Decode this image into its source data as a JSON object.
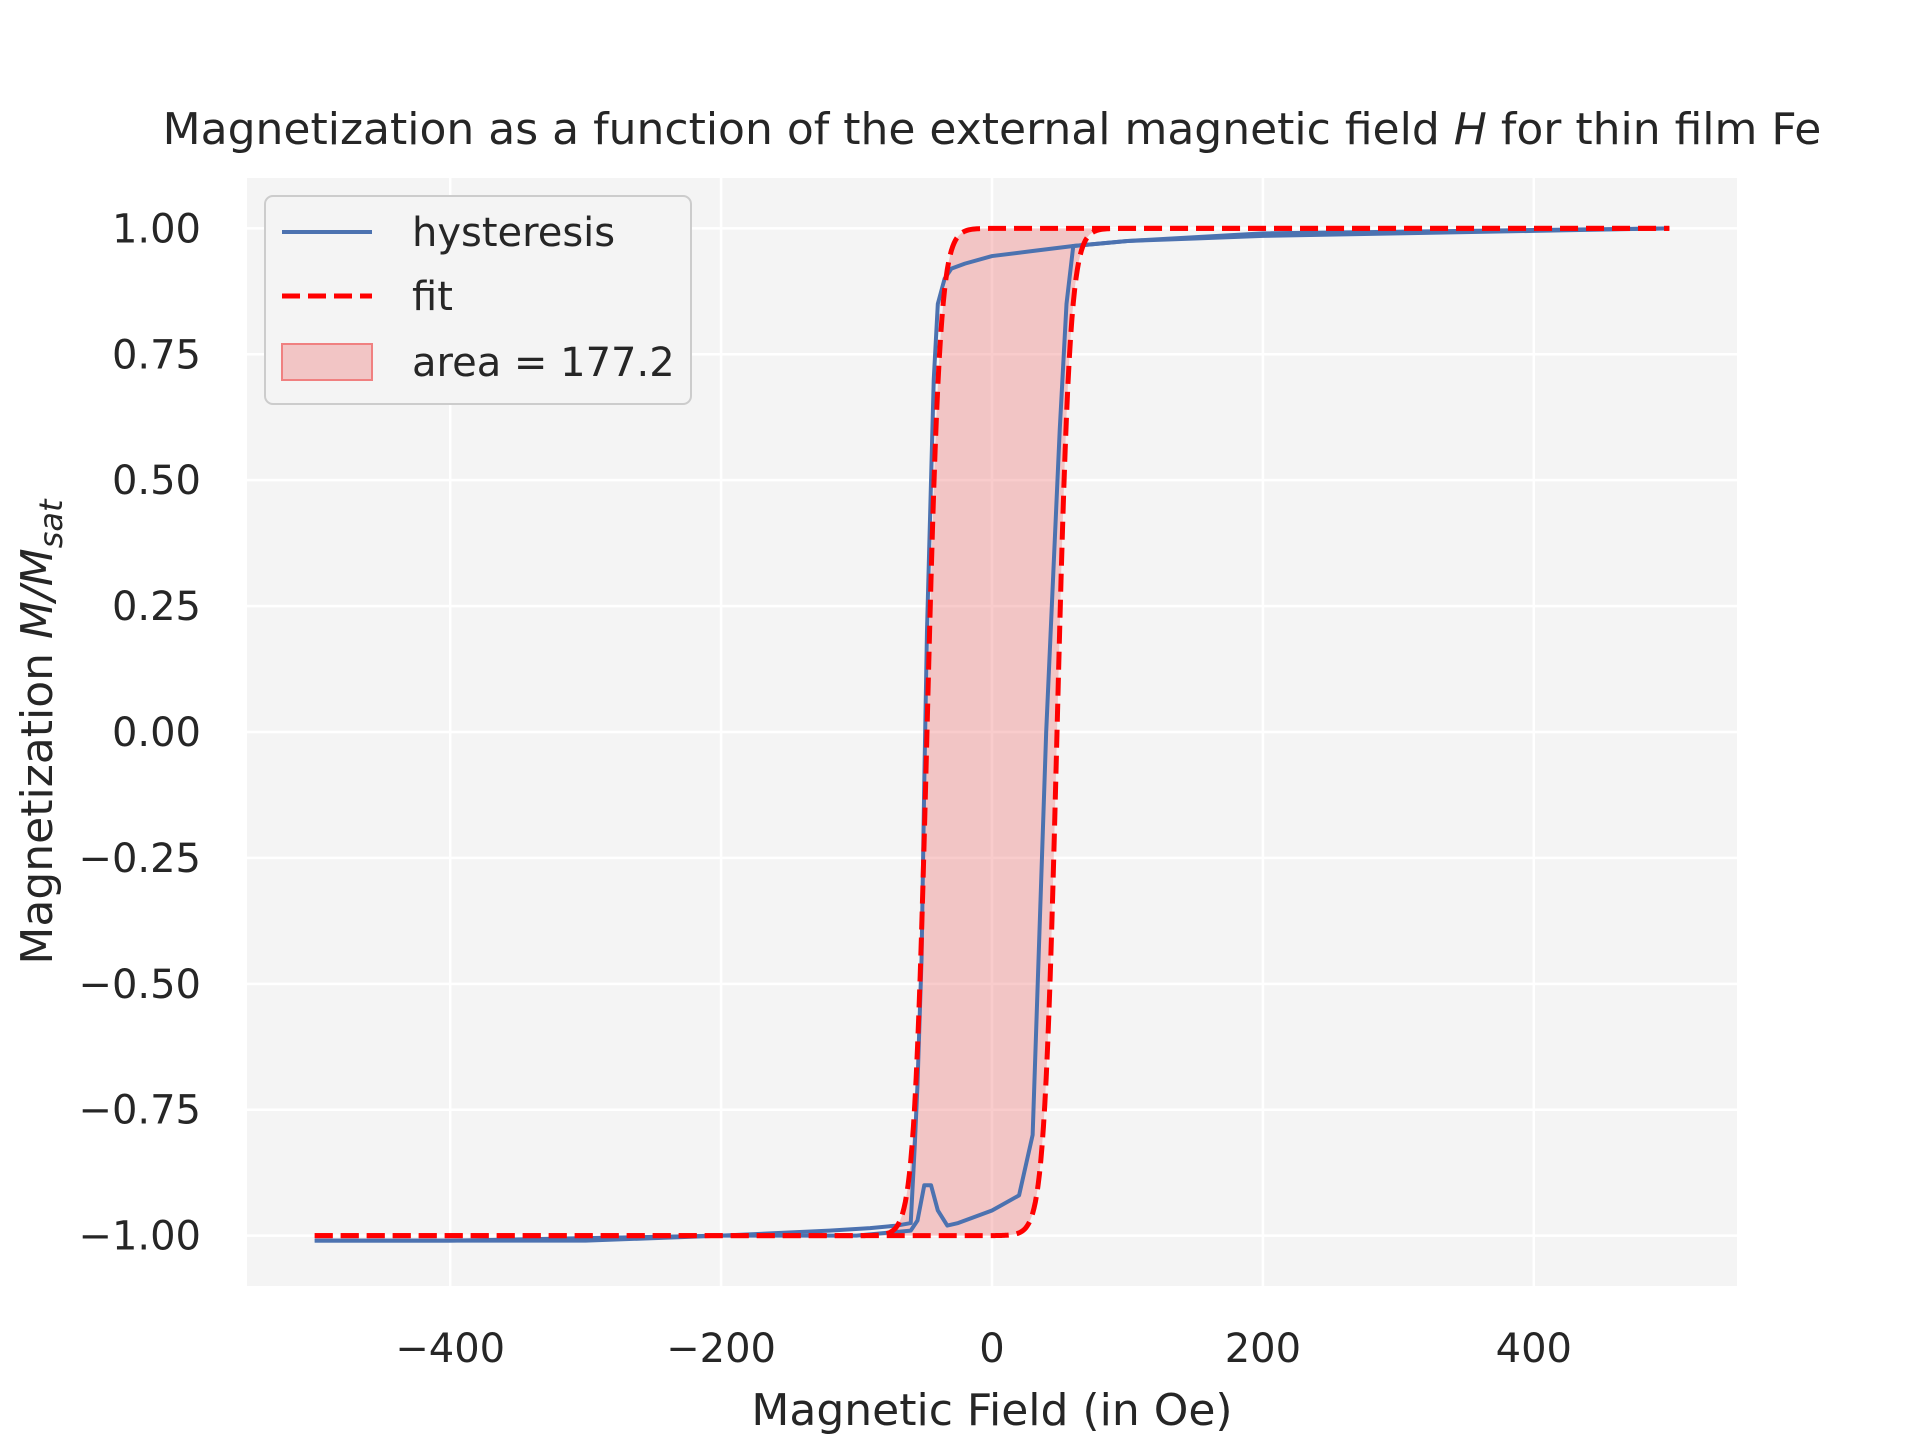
{
  "chart_data": {
    "type": "line",
    "title": "Magnetization as a function of the external magnetic field ",
    "title_italic": "H",
    "title_end": " for thin film Fe",
    "xlabel": "Magnetic Field (in Oe)",
    "ylabel_main": "Magnetization ",
    "ylabel_math": "M/M",
    "ylabel_sub": "sat",
    "xlim": [
      -550,
      550
    ],
    "ylim": [
      -1.1,
      1.1
    ],
    "xticks": [
      -400,
      -200,
      0,
      200,
      400
    ],
    "xtick_labels": [
      "−400",
      "−200",
      "0",
      "200",
      "400"
    ],
    "yticks": [
      1.0,
      0.75,
      0.5,
      0.25,
      0.0,
      -0.25,
      -0.5,
      -0.75,
      -1.0
    ],
    "ytick_labels": [
      "1.00",
      "0.75",
      "0.50",
      "0.25",
      "0.00",
      "−0.25",
      "−0.50",
      "−0.75",
      "−1.00"
    ],
    "grid": true,
    "legend": "top-left",
    "colors": {
      "background": "#f4f4f4",
      "grid": "#ffffff",
      "hysteresis": "#4c72b0",
      "fit": "#ff0000",
      "fill": "#f08080"
    },
    "series": [
      {
        "name": "hysteresis",
        "style": "solid",
        "descending": {
          "x": [
            500,
            200,
            100,
            60,
            55,
            50,
            45,
            40,
            35,
            30,
            20,
            0,
            -10,
            -25,
            -33,
            -40,
            -45,
            -50,
            -55,
            -60,
            -100,
            -200,
            -300,
            -400,
            -450,
            -500
          ],
          "y": [
            1.0,
            0.99,
            0.975,
            0.965,
            0.85,
            0.6,
            0.3,
            0.0,
            -0.4,
            -0.8,
            -0.92,
            -0.95,
            -0.96,
            -0.975,
            -0.98,
            -0.95,
            -0.9,
            -0.9,
            -0.97,
            -0.99,
            -1.0,
            -1.0,
            -1.01,
            -1.01,
            -1.01,
            -1.01
          ]
        },
        "ascending": {
          "x": [
            -500,
            -400,
            -300,
            -200,
            -120,
            -90,
            -70,
            -60,
            -57,
            -55,
            -52,
            -50,
            -48,
            -45,
            -43,
            -40,
            -35,
            -30,
            -20,
            0,
            30,
            60,
            100,
            150,
            200,
            300,
            400,
            500
          ],
          "y": [
            -1.01,
            -1.01,
            -1.005,
            -1.0,
            -0.99,
            -0.985,
            -0.98,
            -0.975,
            -0.82,
            -0.7,
            -0.45,
            -0.1,
            0.2,
            0.5,
            0.7,
            0.85,
            0.9,
            0.92,
            0.93,
            0.945,
            0.955,
            0.965,
            0.975,
            0.98,
            0.985,
            0.99,
            0.995,
            1.0
          ]
        }
      },
      {
        "name": "fit",
        "style": "dashed",
        "model": "tanh",
        "Ms": 1.0,
        "Hc": 48,
        "width": 9.5
      }
    ],
    "fill_label": "area = 177.2",
    "area": 177.2
  }
}
